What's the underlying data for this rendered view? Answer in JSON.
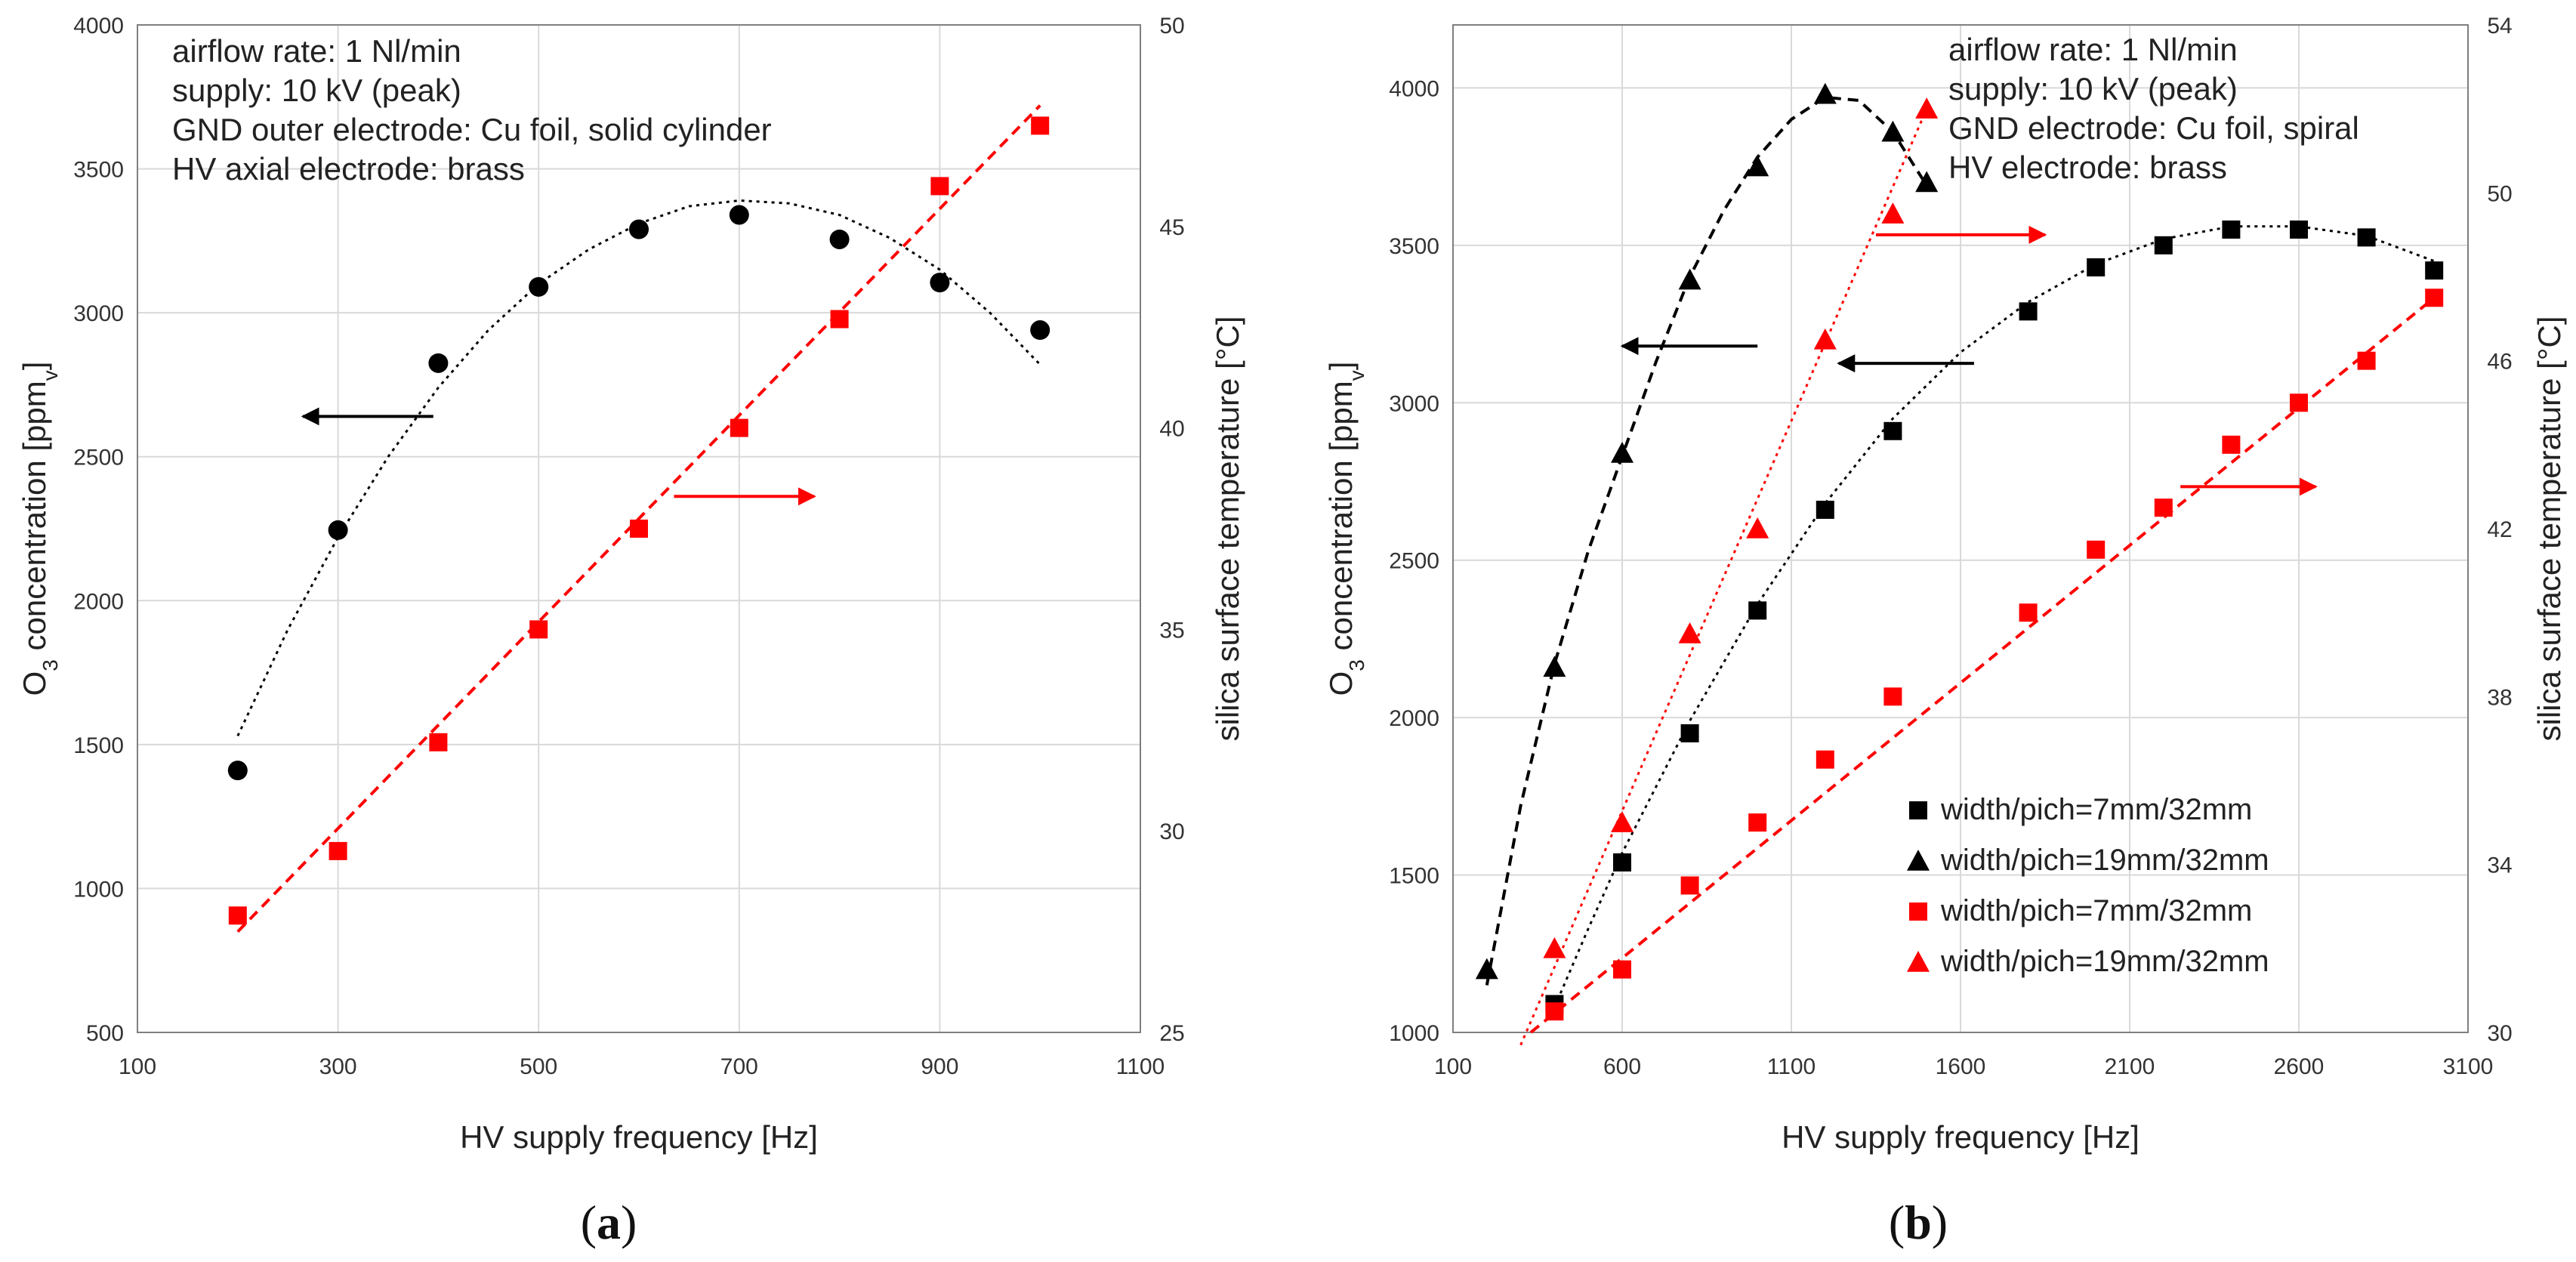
{
  "figure": {
    "panel_labels": {
      "a": {
        "open": "(",
        "letter": "a",
        "close": ")"
      },
      "b": {
        "open": "(",
        "letter": "b",
        "close": ")"
      }
    }
  },
  "colors": {
    "black": "#000000",
    "red": "#ff0000",
    "grid": "#d9d9d9",
    "axis": "#7f7f7f"
  },
  "chart_data": [
    {
      "id": "a",
      "type": "scatter",
      "xlabel": "HV supply frequency [Hz]",
      "ylabel_left": {
        "pre": "O",
        "sub1": "3",
        "mid": " concentration [ppm",
        "sub2": "v",
        "post": "]"
      },
      "ylabel_right": "silica surface temperature [°C]",
      "xlim": [
        100,
        1100
      ],
      "xticks": [
        100,
        300,
        500,
        700,
        900,
        1100
      ],
      "ylim_left": [
        500,
        4000
      ],
      "yticks_left": [
        500,
        1000,
        1500,
        2000,
        2500,
        3000,
        3500,
        4000
      ],
      "ylim_right": [
        25,
        50
      ],
      "yticks_right": [
        25,
        30,
        35,
        40,
        45,
        50
      ],
      "annotation": [
        "airflow rate: 1 Nl/min",
        "supply: 10 kV (peak)",
        "GND outer electrode: Cu foil, solid cylinder",
        "HV axial electrode: brass"
      ],
      "series": [
        {
          "name": "O3 concentration",
          "axis": "left",
          "marker": "circle",
          "color": "black",
          "x": [
            200,
            300,
            400,
            500,
            600,
            700,
            800,
            900,
            1000
          ],
          "y": [
            1410,
            2245,
            2825,
            3090,
            3290,
            3340,
            3255,
            3105,
            2940
          ]
        },
        {
          "name": "silica surface temperature",
          "axis": "right",
          "marker": "square",
          "color": "red",
          "x": [
            200,
            300,
            400,
            500,
            600,
            700,
            800,
            900,
            1000
          ],
          "y": [
            27.9,
            29.5,
            32.2,
            35.0,
            37.5,
            40.0,
            42.7,
            46.0,
            47.5
          ]
        }
      ],
      "trendlines": [
        {
          "axis": "left",
          "color": "black",
          "style": "dotted",
          "x": [
            200,
            250,
            300,
            350,
            400,
            450,
            500,
            550,
            600,
            650,
            700,
            750,
            800,
            850,
            900,
            950,
            1000
          ],
          "y": [
            1530,
            1900,
            2220,
            2500,
            2740,
            2940,
            3100,
            3220,
            3310,
            3370,
            3390,
            3380,
            3340,
            3260,
            3150,
            3000,
            2820
          ]
        },
        {
          "axis": "right",
          "color": "red",
          "style": "dashed",
          "x": [
            200,
            1000
          ],
          "y": [
            27.5,
            48.0
          ]
        }
      ],
      "arrows": [
        {
          "direction": "left",
          "color": "black",
          "x_from": 395,
          "x_to": 265,
          "y_axis": "left",
          "y": 2640
        },
        {
          "direction": "right",
          "color": "red",
          "x_from": 635,
          "x_to": 775,
          "y_axis": "right",
          "y": 38.3
        }
      ]
    },
    {
      "id": "b",
      "type": "scatter",
      "xlabel": "HV supply frequency [Hz]",
      "ylabel_left": {
        "pre": "O",
        "sub1": "3",
        "mid": " concentration [ppm",
        "sub2": "v",
        "post": "]"
      },
      "ylabel_right": "silica surface temperature [°C]",
      "xlim": [
        100,
        3100
      ],
      "xticks": [
        100,
        600,
        1100,
        1600,
        2100,
        2600,
        3100
      ],
      "ylim_left": [
        1000,
        4200
      ],
      "yticks_left": [
        1000,
        1500,
        2000,
        2500,
        3000,
        3500,
        4000
      ],
      "ylim_right": [
        30,
        54
      ],
      "yticks_right": [
        30,
        34,
        38,
        42,
        46,
        50,
        54
      ],
      "annotation": [
        "airflow rate: 1 Nl/min",
        "supply: 10 kV (peak)",
        "GND electrode: Cu foil, spiral",
        "HV electrode: brass"
      ],
      "legend": [
        {
          "label": "width/pich=7mm/32mm",
          "marker": "square",
          "color": "black"
        },
        {
          "label": "width/pich=19mm/32mm",
          "marker": "triangle",
          "color": "black"
        },
        {
          "label": "width/pich=7mm/32mm",
          "marker": "square",
          "color": "red"
        },
        {
          "label": "width/pich=19mm/32mm",
          "marker": "triangle",
          "color": "red"
        }
      ],
      "series": [
        {
          "name": "width/pich=7mm/32mm",
          "axis": "left",
          "marker": "square",
          "color": "black",
          "x": [
            400,
            600,
            800,
            1000,
            1200,
            1400,
            1800,
            2000,
            2200,
            2400,
            2600,
            2800,
            3000
          ],
          "y": [
            1090,
            1540,
            1950,
            2340,
            2660,
            2910,
            3290,
            3430,
            3500,
            3550,
            3550,
            3525,
            3420
          ]
        },
        {
          "name": "width/pich=19mm/32mm",
          "axis": "left",
          "marker": "triangle",
          "color": "black",
          "x": [
            200,
            400,
            600,
            800,
            1000,
            1200,
            1400,
            1500
          ],
          "y": [
            1200,
            2160,
            2840,
            3390,
            3750,
            3980,
            3860,
            3700
          ]
        },
        {
          "name": "width/pich=7mm/32mm",
          "axis": "right",
          "marker": "square",
          "color": "red",
          "x": [
            400,
            600,
            800,
            1000,
            1200,
            1400,
            1800,
            2000,
            2200,
            2400,
            2600,
            2800,
            3000
          ],
          "y": [
            30.5,
            31.5,
            33.5,
            35.0,
            36.5,
            38.0,
            40.0,
            41.5,
            42.5,
            44.0,
            45.0,
            46.0,
            47.5
          ]
        },
        {
          "name": "width/pich=19mm/32mm",
          "axis": "right",
          "marker": "triangle",
          "color": "red",
          "x": [
            400,
            600,
            800,
            1000,
            1200,
            1400,
            1500
          ],
          "y": [
            32.0,
            35.0,
            39.5,
            42.0,
            46.5,
            49.5,
            52.0
          ]
        }
      ],
      "trendlines": [
        {
          "axis": "left",
          "color": "black",
          "style": "dotted",
          "x": [
            400,
            500,
            600,
            800,
            1000,
            1200,
            1400,
            1600,
            1800,
            2000,
            2200,
            2400,
            2600,
            2800,
            3000
          ],
          "y": [
            1080,
            1330,
            1570,
            1990,
            2360,
            2680,
            2950,
            3160,
            3320,
            3440,
            3520,
            3560,
            3560,
            3530,
            3450
          ]
        },
        {
          "axis": "left",
          "color": "black",
          "style": "dashed",
          "x": [
            200,
            300,
            400,
            500,
            600,
            700,
            800,
            900,
            1000,
            1100,
            1200,
            1300,
            1400,
            1500
          ],
          "y": [
            1150,
            1720,
            2170,
            2530,
            2830,
            3130,
            3400,
            3610,
            3780,
            3900,
            3970,
            3960,
            3860,
            3690
          ]
        },
        {
          "axis": "right",
          "color": "red",
          "style": "dashed",
          "x": [
            330,
            3000
          ],
          "y": [
            30.0,
            47.5
          ]
        },
        {
          "axis": "right",
          "color": "red",
          "style": "dotted",
          "x": [
            300,
            1500
          ],
          "y": [
            29.7,
            52.0
          ]
        }
      ],
      "arrows": [
        {
          "direction": "left",
          "color": "black",
          "x_from": 1000,
          "x_to": 600,
          "y_axis": "left",
          "y": 3180
        },
        {
          "direction": "left",
          "color": "black",
          "x_from": 1640,
          "x_to": 1240,
          "y_axis": "left",
          "y": 3125
        },
        {
          "direction": "right",
          "color": "red",
          "x_from": 1350,
          "x_to": 1850,
          "y_axis": "right",
          "y": 49.0
        },
        {
          "direction": "right",
          "color": "red",
          "x_from": 2250,
          "x_to": 2650,
          "y_axis": "right",
          "y": 43.0
        }
      ]
    }
  ]
}
